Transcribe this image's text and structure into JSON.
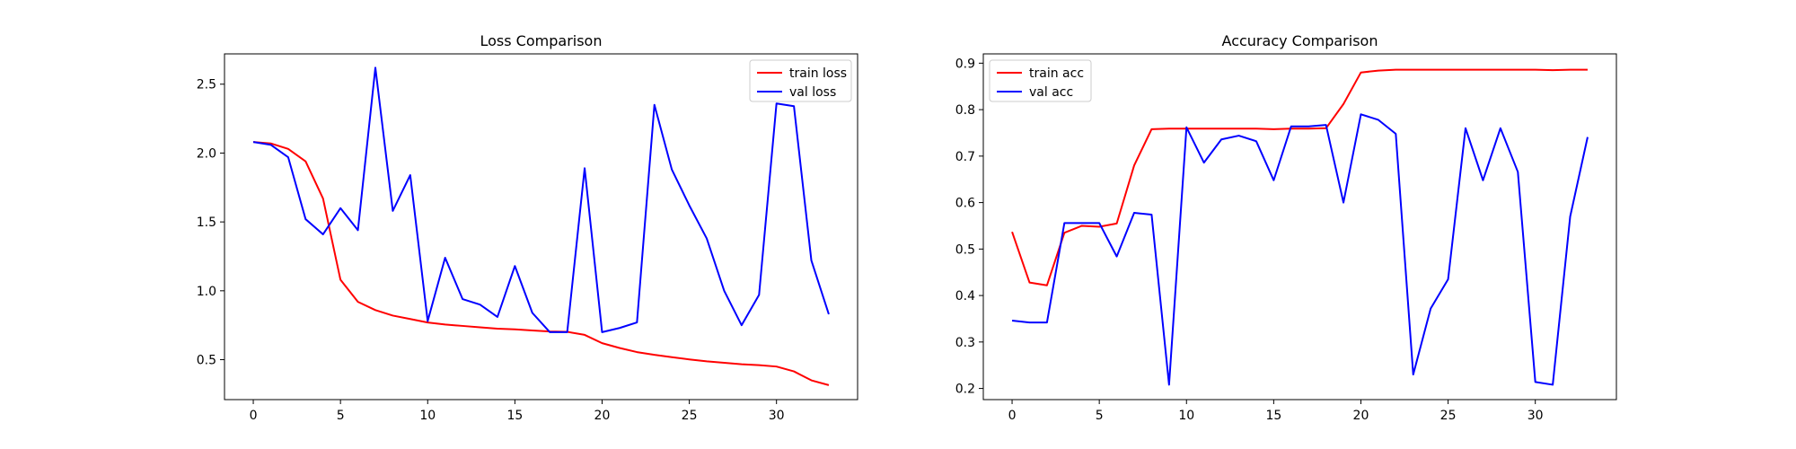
{
  "chart_data": [
    {
      "type": "line",
      "title": "Loss Comparison",
      "xlabel": "",
      "ylabel": "",
      "xlim": [
        -1.65,
        34.65
      ],
      "ylim": [
        0.21,
        2.72
      ],
      "xticks": [
        0,
        5,
        10,
        15,
        20,
        25,
        30
      ],
      "yticks": [
        0.5,
        1.0,
        1.5,
        2.0,
        2.5
      ],
      "grid": false,
      "legend": "upper right",
      "x": [
        0,
        1,
        2,
        3,
        4,
        5,
        6,
        7,
        8,
        9,
        10,
        11,
        12,
        13,
        14,
        15,
        16,
        17,
        18,
        19,
        20,
        21,
        22,
        23,
        24,
        25,
        26,
        27,
        28,
        29,
        30,
        31,
        32,
        33
      ],
      "series": [
        {
          "name": "train loss",
          "color": "#ff0000",
          "values": [
            2.08,
            2.07,
            2.03,
            1.94,
            1.67,
            1.08,
            0.92,
            0.86,
            0.82,
            0.795,
            0.77,
            0.755,
            0.745,
            0.735,
            0.725,
            0.72,
            0.712,
            0.705,
            0.702,
            0.68,
            0.62,
            0.585,
            0.555,
            0.535,
            0.518,
            0.502,
            0.488,
            0.477,
            0.467,
            0.46,
            0.45,
            0.415,
            0.35,
            0.315
          ]
        },
        {
          "name": "val loss",
          "color": "#0000ff",
          "values": [
            2.08,
            2.06,
            1.97,
            1.52,
            1.41,
            1.6,
            1.44,
            2.62,
            1.58,
            1.84,
            0.78,
            1.24,
            0.94,
            0.9,
            0.81,
            1.18,
            0.84,
            0.7,
            0.7,
            1.89,
            0.7,
            0.73,
            0.77,
            2.35,
            1.88,
            1.62,
            1.38,
            1.0,
            0.75,
            0.97,
            2.36,
            2.34,
            1.22,
            0.83
          ]
        }
      ]
    },
    {
      "type": "line",
      "title": "Accuracy Comparison",
      "xlabel": "",
      "ylabel": "",
      "xlim": [
        -1.65,
        34.65
      ],
      "ylim": [
        0.176,
        0.92
      ],
      "xticks": [
        0,
        5,
        10,
        15,
        20,
        25,
        30
      ],
      "yticks": [
        0.2,
        0.3,
        0.4,
        0.5,
        0.6,
        0.7,
        0.8,
        0.9
      ],
      "grid": false,
      "legend": "upper left",
      "x": [
        0,
        1,
        2,
        3,
        4,
        5,
        6,
        7,
        8,
        9,
        10,
        11,
        12,
        13,
        14,
        15,
        16,
        17,
        18,
        19,
        20,
        21,
        22,
        23,
        24,
        25,
        26,
        27,
        28,
        29,
        30,
        31,
        32,
        33
      ],
      "series": [
        {
          "name": "train acc",
          "color": "#ff0000",
          "values": [
            0.537,
            0.428,
            0.422,
            0.535,
            0.55,
            0.548,
            0.555,
            0.68,
            0.758,
            0.759,
            0.759,
            0.759,
            0.759,
            0.759,
            0.759,
            0.758,
            0.759,
            0.759,
            0.76,
            0.812,
            0.88,
            0.884,
            0.886,
            0.886,
            0.886,
            0.886,
            0.886,
            0.886,
            0.886,
            0.886,
            0.886,
            0.885,
            0.886,
            0.886
          ]
        },
        {
          "name": "val acc",
          "color": "#0000ff",
          "values": [
            0.346,
            0.342,
            0.342,
            0.556,
            0.556,
            0.556,
            0.484,
            0.578,
            0.574,
            0.208,
            0.762,
            0.686,
            0.736,
            0.744,
            0.732,
            0.648,
            0.764,
            0.764,
            0.767,
            0.6,
            0.79,
            0.778,
            0.748,
            0.23,
            0.372,
            0.435,
            0.76,
            0.648,
            0.76,
            0.666,
            0.214,
            0.208,
            0.57,
            0.741
          ]
        }
      ]
    }
  ]
}
